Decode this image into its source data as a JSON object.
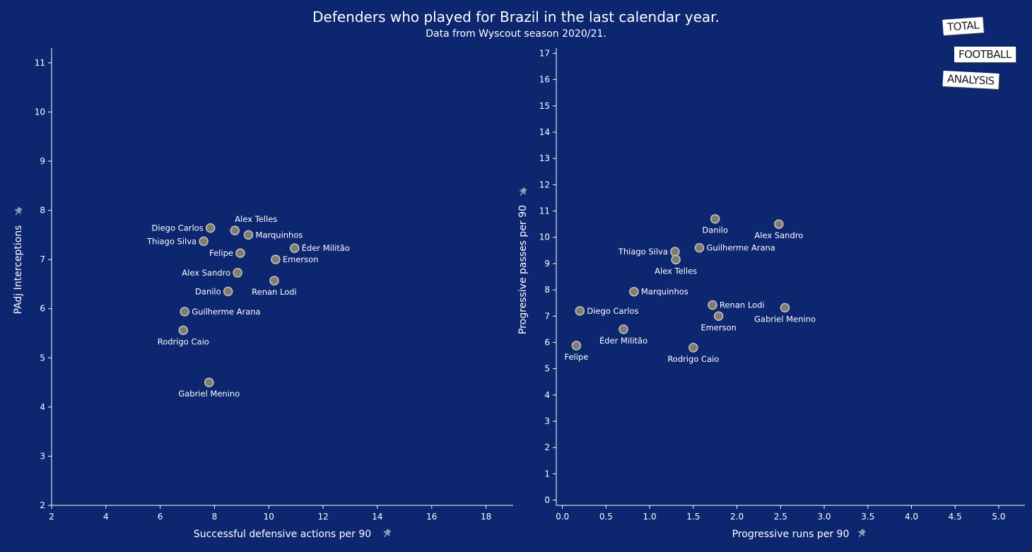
{
  "header": {
    "title": "Defenders who played for Brazil in the last calendar year.",
    "subtitle": "Data from Wyscout season 2020/21."
  },
  "logo": {
    "line1": "TOTAL",
    "line2": "FOOTBALL",
    "line3": "ANALYSIS"
  },
  "colors": {
    "background": "#0c2670",
    "point_fill": "#7f7c74",
    "point_stroke": "#c8c4b8",
    "text": "#ffffff",
    "axis": "#ffffff"
  },
  "chart_data": [
    {
      "type": "scatter",
      "xlabel": "Successful defensive actions per 90",
      "ylabel": "PAdj Interceptions",
      "xlim": [
        2,
        19
      ],
      "ylim": [
        2,
        11.3
      ],
      "xticks": [
        2,
        4,
        6,
        8,
        10,
        12,
        14,
        16,
        18
      ],
      "yticks": [
        2,
        3,
        4,
        5,
        6,
        7,
        8,
        9,
        10,
        11
      ],
      "points": [
        {
          "label": "Diego Carlos",
          "x": 7.85,
          "y": 7.64,
          "pos": "left"
        },
        {
          "label": "Alex Telles",
          "x": 8.75,
          "y": 7.59,
          "pos": "above-right"
        },
        {
          "label": "Marquinhos",
          "x": 9.25,
          "y": 7.5,
          "pos": "right"
        },
        {
          "label": "Thiago Silva",
          "x": 7.6,
          "y": 7.37,
          "pos": "left"
        },
        {
          "label": "Éder Militão",
          "x": 10.95,
          "y": 7.23,
          "pos": "right"
        },
        {
          "label": "Felipe",
          "x": 8.95,
          "y": 7.13,
          "pos": "left"
        },
        {
          "label": "Emerson",
          "x": 10.25,
          "y": 7.0,
          "pos": "right"
        },
        {
          "label": "Alex Sandro",
          "x": 8.85,
          "y": 6.73,
          "pos": "left"
        },
        {
          "label": "Renan Lodi",
          "x": 10.2,
          "y": 6.57,
          "pos": "below"
        },
        {
          "label": "Danilo",
          "x": 8.5,
          "y": 6.35,
          "pos": "left"
        },
        {
          "label": "Guilherme Arana",
          "x": 6.9,
          "y": 5.94,
          "pos": "right"
        },
        {
          "label": "Rodrigo Caio",
          "x": 6.85,
          "y": 5.56,
          "pos": "below"
        },
        {
          "label": "Gabriel Menino",
          "x": 7.8,
          "y": 4.5,
          "pos": "below"
        }
      ]
    },
    {
      "type": "scatter",
      "xlabel": "Progressive runs per 90",
      "ylabel": "Progressive passes per 90",
      "xlim": [
        -0.07,
        5.3
      ],
      "ylim": [
        -0.2,
        17.2
      ],
      "xticks": [
        0.0,
        0.5,
        1.0,
        1.5,
        2.0,
        2.5,
        3.0,
        3.5,
        4.0,
        4.5,
        5.0
      ],
      "xtick_labels": [
        "0.0",
        "0.5",
        "1.0",
        "1.5",
        "2.0",
        "2.5",
        "3.0",
        "3.5",
        "4.0",
        "4.5",
        "5.0"
      ],
      "yticks": [
        0,
        1,
        2,
        3,
        4,
        5,
        6,
        7,
        8,
        9,
        10,
        11,
        12,
        13,
        14,
        15,
        16,
        17
      ],
      "points": [
        {
          "label": "Danilo",
          "x": 1.75,
          "y": 10.7,
          "pos": "below"
        },
        {
          "label": "Alex Sandro",
          "x": 2.48,
          "y": 10.5,
          "pos": "below"
        },
        {
          "label": "Guilherme Arana",
          "x": 1.57,
          "y": 9.6,
          "pos": "right"
        },
        {
          "label": "Thiago Silva",
          "x": 1.29,
          "y": 9.45,
          "pos": "left"
        },
        {
          "label": "Alex Telles",
          "x": 1.3,
          "y": 9.15,
          "pos": "below"
        },
        {
          "label": "Marquinhos",
          "x": 0.82,
          "y": 7.93,
          "pos": "right"
        },
        {
          "label": "Renan Lodi",
          "x": 1.72,
          "y": 7.42,
          "pos": "right"
        },
        {
          "label": "Gabriel Menino",
          "x": 2.55,
          "y": 7.32,
          "pos": "below"
        },
        {
          "label": "Diego Carlos",
          "x": 0.2,
          "y": 7.2,
          "pos": "right"
        },
        {
          "label": "Emerson",
          "x": 1.79,
          "y": 7.0,
          "pos": "below"
        },
        {
          "label": "Éder Militão",
          "x": 0.7,
          "y": 6.5,
          "pos": "below"
        },
        {
          "label": "Felipe",
          "x": 0.16,
          "y": 5.88,
          "pos": "below"
        },
        {
          "label": "Rodrigo Caio",
          "x": 1.5,
          "y": 5.8,
          "pos": "below"
        }
      ]
    }
  ]
}
